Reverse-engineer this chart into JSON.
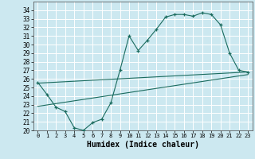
{
  "xlabel": "Humidex (Indice chaleur)",
  "bg_color": "#cce8f0",
  "grid_color": "#ffffff",
  "line_color": "#1a6b5e",
  "xlim": [
    -0.5,
    23.5
  ],
  "ylim": [
    20,
    35
  ],
  "xticks": [
    0,
    1,
    2,
    3,
    4,
    5,
    6,
    7,
    8,
    9,
    10,
    11,
    12,
    13,
    14,
    15,
    16,
    17,
    18,
    19,
    20,
    21,
    22,
    23
  ],
  "yticks": [
    20,
    21,
    22,
    23,
    24,
    25,
    26,
    27,
    28,
    29,
    30,
    31,
    32,
    33,
    34
  ],
  "series": [
    {
      "x": [
        0,
        1,
        2,
        3,
        4,
        5,
        6,
        7,
        8,
        9,
        10,
        11,
        12,
        13,
        14,
        15,
        16,
        17,
        18,
        19,
        20,
        21,
        22,
        23
      ],
      "y": [
        25.6,
        24.2,
        22.7,
        22.2,
        20.3,
        20.0,
        20.9,
        21.3,
        23.2,
        27.0,
        31.0,
        29.3,
        30.5,
        31.8,
        33.2,
        33.5,
        33.5,
        33.3,
        33.7,
        33.5,
        32.3,
        29.0,
        27.0,
        26.8
      ],
      "marker": true
    },
    {
      "x": [
        0,
        23
      ],
      "y": [
        25.5,
        26.8
      ],
      "marker": false
    },
    {
      "x": [
        0,
        23
      ],
      "y": [
        22.8,
        26.5
      ],
      "marker": false
    }
  ]
}
